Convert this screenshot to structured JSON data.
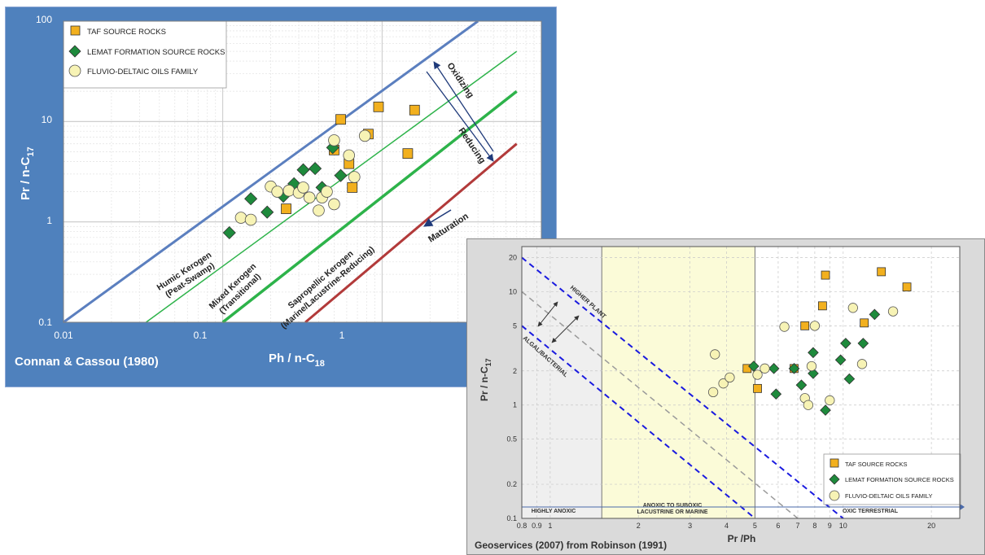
{
  "chart_data": [
    {
      "type": "scatter",
      "xscale": "log",
      "yscale": "log",
      "xlim": [
        0.01,
        10
      ],
      "ylim": [
        0.1,
        100
      ],
      "xlabel": "Ph / n-C18",
      "ylabel": "Pr / n-C17",
      "x_ticks": [
        "0.01",
        "0.1",
        "1"
      ],
      "y_ticks": [
        "0.1",
        "1",
        "10",
        "100"
      ],
      "credit": "Connan & Cassou (1980)",
      "grid": true,
      "legend_position": "top-left",
      "legend": [
        "TAF SOURCE ROCKS",
        "LEMAT FORMATION SOURCE ROCKS",
        "FLUVIO-DELTAIC OILS FAMILY"
      ],
      "region_labels": [
        {
          "line1": "Humic Kerogen",
          "line2": "(Peat-Swamp)"
        },
        {
          "line1": "Mixed Kerogen",
          "line2": "(Transitional)"
        },
        {
          "line1": "Sapropellic Kerogen",
          "line2": "(Marine/Lacustrine-Reducing)"
        }
      ],
      "arrow_labels": [
        "Oxidizing",
        "Reducing",
        "Maturation"
      ],
      "boundary_lines": [
        {
          "color": "#5b7fbf",
          "points": [
            [
              0.01,
              0.1
            ],
            [
              4.0,
              100
            ]
          ]
        },
        {
          "color": "#2db34a",
          "points": [
            [
              0.033,
              0.1
            ],
            [
              7.0,
              50
            ]
          ]
        },
        {
          "color": "#2db34a",
          "points": [
            [
              0.1,
              0.1
            ],
            [
              7.0,
              20
            ]
          ]
        },
        {
          "color": "#b23a3a",
          "points": [
            [
              0.33,
              0.1
            ],
            [
              7.0,
              6
            ]
          ]
        }
      ],
      "series": [
        {
          "name": "TAF SOURCE ROCKS",
          "color": "#f2b01e",
          "marker": "square",
          "points": [
            [
              0.25,
              1.35
            ],
            [
              0.5,
              5.2
            ],
            [
              0.55,
              10.5
            ],
            [
              0.62,
              3.8
            ],
            [
              0.65,
              2.2
            ],
            [
              0.82,
              7.5
            ],
            [
              0.95,
              14
            ],
            [
              1.45,
              4.8
            ],
            [
              1.6,
              13
            ]
          ]
        },
        {
          "name": "LEMAT FORMATION SOURCE ROCKS",
          "color": "#1e8a3c",
          "marker": "diamond",
          "points": [
            [
              0.11,
              0.78
            ],
            [
              0.15,
              1.7
            ],
            [
              0.19,
              1.25
            ],
            [
              0.24,
              1.8
            ],
            [
              0.28,
              2.4
            ],
            [
              0.32,
              3.3
            ],
            [
              0.38,
              3.4
            ],
            [
              0.42,
              2.2
            ],
            [
              0.49,
              5.5
            ],
            [
              0.55,
              2.9
            ]
          ]
        },
        {
          "name": "FLUVIO-DELTAIC OILS FAMILY",
          "color": "#f7f3b5",
          "marker": "circle",
          "points": [
            [
              0.13,
              1.1
            ],
            [
              0.15,
              1.05
            ],
            [
              0.2,
              2.25
            ],
            [
              0.22,
              2.0
            ],
            [
              0.26,
              2.05
            ],
            [
              0.3,
              1.95
            ],
            [
              0.32,
              2.2
            ],
            [
              0.35,
              1.75
            ],
            [
              0.4,
              1.3
            ],
            [
              0.42,
              1.75
            ],
            [
              0.45,
              2.0
            ],
            [
              0.5,
              1.5
            ],
            [
              0.5,
              6.5
            ],
            [
              0.62,
              4.6
            ],
            [
              0.67,
              2.8
            ],
            [
              0.78,
              7.2
            ]
          ]
        }
      ]
    },
    {
      "type": "scatter",
      "xscale": "log",
      "yscale": "log",
      "xlim": [
        0.8,
        25
      ],
      "ylim": [
        0.1,
        25
      ],
      "xlabel": "Pr /Ph",
      "ylabel": "Pr / n-C17",
      "x_ticks": [
        "0.8",
        "0.9",
        "1",
        "2",
        "3",
        "4",
        "5",
        "6",
        "7",
        "8",
        "9",
        "10",
        "20"
      ],
      "y_ticks": [
        "0.1",
        "0.2",
        "0.5",
        "1",
        "2",
        "5",
        "10",
        "20"
      ],
      "credit": "Geoservices  (2007)  from Robinson (1991)",
      "grid": true,
      "legend_position": "bottom-right",
      "legend": [
        "TAF SOURCE ROCKS",
        "LEMAT FORMATION SOURCE ROCKS",
        "FLUVIO-DELTAIC OILS FAMILY"
      ],
      "zones": [
        {
          "label": "HIGHLY ANOXIC",
          "from": 0.8,
          "to": 1.5,
          "color": "#efefef"
        },
        {
          "label_top": "ANOXIC TO SUBOXIC",
          "label": "LACUSTRINE OR MARINE",
          "from": 1.5,
          "to": 5,
          "color": "#fbfbd8"
        },
        {
          "label": "OXIC TERRESTRIAL",
          "from": 5,
          "to": 25,
          "color": "#ffffff"
        }
      ],
      "diagonal_labels": [
        "HIGHER PLANT",
        "ALGAL/BACTERIAL"
      ],
      "diagonal_lines": [
        {
          "color": "#1a1adf",
          "style": "dashed",
          "points": [
            [
              0.8,
              20
            ],
            [
              10,
              0.1
            ]
          ]
        },
        {
          "color": "#9a9a9a",
          "style": "dashed",
          "points": [
            [
              0.8,
              10
            ],
            [
              7,
              0.1
            ]
          ]
        },
        {
          "color": "#1a1adf",
          "style": "dashed",
          "points": [
            [
              0.8,
              5
            ],
            [
              5,
              0.1
            ]
          ]
        }
      ],
      "series": [
        {
          "name": "TAF SOURCE ROCKS",
          "color": "#f2b01e",
          "marker": "square",
          "points": [
            [
              4.7,
              2.1
            ],
            [
              5.1,
              1.4
            ],
            [
              6.8,
              2.1
            ],
            [
              7.4,
              5.0
            ],
            [
              8.5,
              7.5
            ],
            [
              8.7,
              14
            ],
            [
              11.8,
              5.3
            ],
            [
              13.5,
              15
            ],
            [
              16.5,
              11
            ]
          ]
        },
        {
          "name": "LEMAT FORMATION SOURCE ROCKS",
          "color": "#1e8a3c",
          "marker": "diamond",
          "points": [
            [
              4.95,
              2.2
            ],
            [
              5.8,
              2.1
            ],
            [
              5.9,
              1.25
            ],
            [
              6.8,
              2.1
            ],
            [
              7.2,
              1.5
            ],
            [
              7.9,
              2.9
            ],
            [
              7.9,
              1.9
            ],
            [
              8.7,
              0.9
            ],
            [
              9.8,
              2.5
            ],
            [
              10.2,
              3.5
            ],
            [
              10.5,
              1.7
            ],
            [
              11.7,
              3.5
            ],
            [
              12.8,
              6.3
            ]
          ]
        },
        {
          "name": "FLUVIO-DELTAIC OILS FAMILY",
          "color": "#f7f3b5",
          "marker": "circle",
          "points": [
            [
              3.6,
              1.3
            ],
            [
              3.65,
              2.8
            ],
            [
              3.9,
              1.55
            ],
            [
              4.1,
              1.75
            ],
            [
              5.1,
              1.85
            ],
            [
              5.4,
              2.1
            ],
            [
              6.3,
              4.9
            ],
            [
              7.4,
              1.15
            ],
            [
              7.6,
              1.0
            ],
            [
              7.8,
              2.2
            ],
            [
              8.0,
              5.0
            ],
            [
              9.0,
              1.1
            ],
            [
              10.8,
              7.2
            ],
            [
              11.6,
              2.3
            ],
            [
              14.8,
              6.7
            ]
          ]
        }
      ]
    }
  ]
}
